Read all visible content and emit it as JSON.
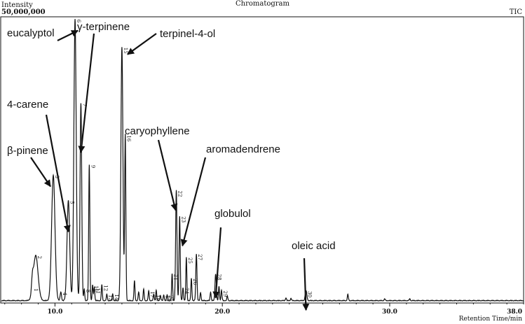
{
  "chart_data": {
    "type": "line",
    "title": "Chromatogram",
    "ylabel": "Intensity",
    "ymax_label": "50,000,000",
    "series_label": "TIC",
    "xlabel": "Retention Time/min",
    "xlim": [
      6.8,
      38.0
    ],
    "ylim": [
      0,
      50000000
    ],
    "x_ticks": [
      "10.0",
      "20.0",
      "30.0",
      "38.0"
    ],
    "grid": false,
    "peaks": [
      {
        "num": "1",
        "rt": 8.65,
        "height": 2200000,
        "width": 0.05
      },
      {
        "num": "2",
        "rt": 8.85,
        "height": 7900000,
        "width": 0.14
      },
      {
        "num": "3",
        "rt": 9.9,
        "height": 22000000,
        "width": 0.1
      },
      {
        "num": "4",
        "rt": 10.35,
        "height": 1500000,
        "width": 0.04
      },
      {
        "num": "5",
        "rt": 10.8,
        "height": 17500000,
        "width": 0.08
      },
      {
        "num": "6",
        "rt": 11.2,
        "height": 49300000,
        "width": 0.07
      },
      {
        "num": "7",
        "rt": 11.55,
        "height": 34600000,
        "width": 0.05
      },
      {
        "num": "8",
        "rt": 11.75,
        "height": 2000000,
        "width": 0.03
      },
      {
        "num": "9",
        "rt": 12.05,
        "height": 23800000,
        "width": 0.035
      },
      {
        "num": "10",
        "rt": 12.25,
        "height": 2700000,
        "width": 0.03
      },
      {
        "num": "11",
        "rt": 12.35,
        "height": 2300000,
        "width": 0.03
      },
      {
        "num": "12",
        "rt": 12.8,
        "height": 2800000,
        "width": 0.03
      },
      {
        "num": "13",
        "rt": 13.1,
        "height": 1100000,
        "width": 0.03
      },
      {
        "num": "14",
        "rt": 13.45,
        "height": 1200000,
        "width": 0.03
      },
      {
        "num": "15",
        "rt": 14.0,
        "height": 44400000,
        "width": 0.06
      },
      {
        "num": "16",
        "rt": 14.2,
        "height": 29000000,
        "width": 0.035
      },
      {
        "num": "17",
        "rt": 15.6,
        "height": 1700000,
        "width": 0.03
      },
      {
        "num": "18",
        "rt": 15.9,
        "height": 1100000,
        "width": 0.03
      },
      {
        "num": "19",
        "rt": 16.5,
        "height": 1000000,
        "width": 0.03
      },
      {
        "num": "20",
        "rt": 16.7,
        "height": 1000000,
        "width": 0.03
      },
      {
        "num": "21",
        "rt": 17.0,
        "height": 4700000,
        "width": 0.03
      },
      {
        "num": "22",
        "rt": 17.25,
        "height": 19300000,
        "width": 0.04
      },
      {
        "num": "23",
        "rt": 17.45,
        "height": 14800000,
        "width": 0.035
      },
      {
        "num": "24",
        "rt": 17.65,
        "height": 2300000,
        "width": 0.03
      },
      {
        "num": "25",
        "rt": 17.85,
        "height": 7600000,
        "width": 0.03
      },
      {
        "num": "26",
        "rt": 18.15,
        "height": 3900000,
        "width": 0.03
      },
      {
        "num": "27",
        "rt": 18.45,
        "height": 8200000,
        "width": 0.035
      },
      {
        "num": "28",
        "rt": 19.6,
        "height": 4700000,
        "width": 0.04
      },
      {
        "num": "29",
        "rt": 19.95,
        "height": 1800000,
        "width": 0.03
      },
      {
        "num": "30",
        "rt": 25.0,
        "height": 1700000,
        "width": 0.05
      }
    ],
    "minor_peaks": [
      {
        "rt": 14.75,
        "height": 3500000
      },
      {
        "rt": 15.0,
        "height": 1500000
      },
      {
        "rt": 15.3,
        "height": 2000000
      },
      {
        "rt": 16.05,
        "height": 1800000
      },
      {
        "rt": 16.3,
        "height": 900000
      },
      {
        "rt": 18.7,
        "height": 1400000
      },
      {
        "rt": 19.3,
        "height": 1500000
      },
      {
        "rt": 19.8,
        "height": 2500000
      },
      {
        "rt": 20.3,
        "height": 800000
      },
      {
        "rt": 23.8,
        "height": 500000
      },
      {
        "rt": 24.1,
        "height": 400000
      },
      {
        "rt": 27.5,
        "height": 1100000
      },
      {
        "rt": 29.7,
        "height": 300000
      },
      {
        "rt": 31.2,
        "height": 300000
      }
    ],
    "annotations": [
      {
        "text": "eucalyptol",
        "peak_rt": 11.2,
        "peak_height": 49300000
      },
      {
        "text": "γ-terpinene",
        "peak_rt": 11.55,
        "peak_height": 34600000
      },
      {
        "text": "terpinel-4-ol",
        "peak_rt": 14.0,
        "peak_height": 44400000
      },
      {
        "text": "4-carene",
        "peak_rt": 10.8,
        "peak_height": 17500000
      },
      {
        "text": "β-pinene",
        "peak_rt": 9.9,
        "peak_height": 22000000
      },
      {
        "text": "caryophyllene",
        "peak_rt": 17.25,
        "peak_height": 19300000
      },
      {
        "text": "aromadendrene",
        "peak_rt": 17.45,
        "peak_height": 14800000
      },
      {
        "text": "globulol",
        "peak_rt": 19.6,
        "peak_height": 4700000
      },
      {
        "text": "oleic acid",
        "peak_rt": 25.0,
        "peak_height": 1700000
      }
    ]
  }
}
